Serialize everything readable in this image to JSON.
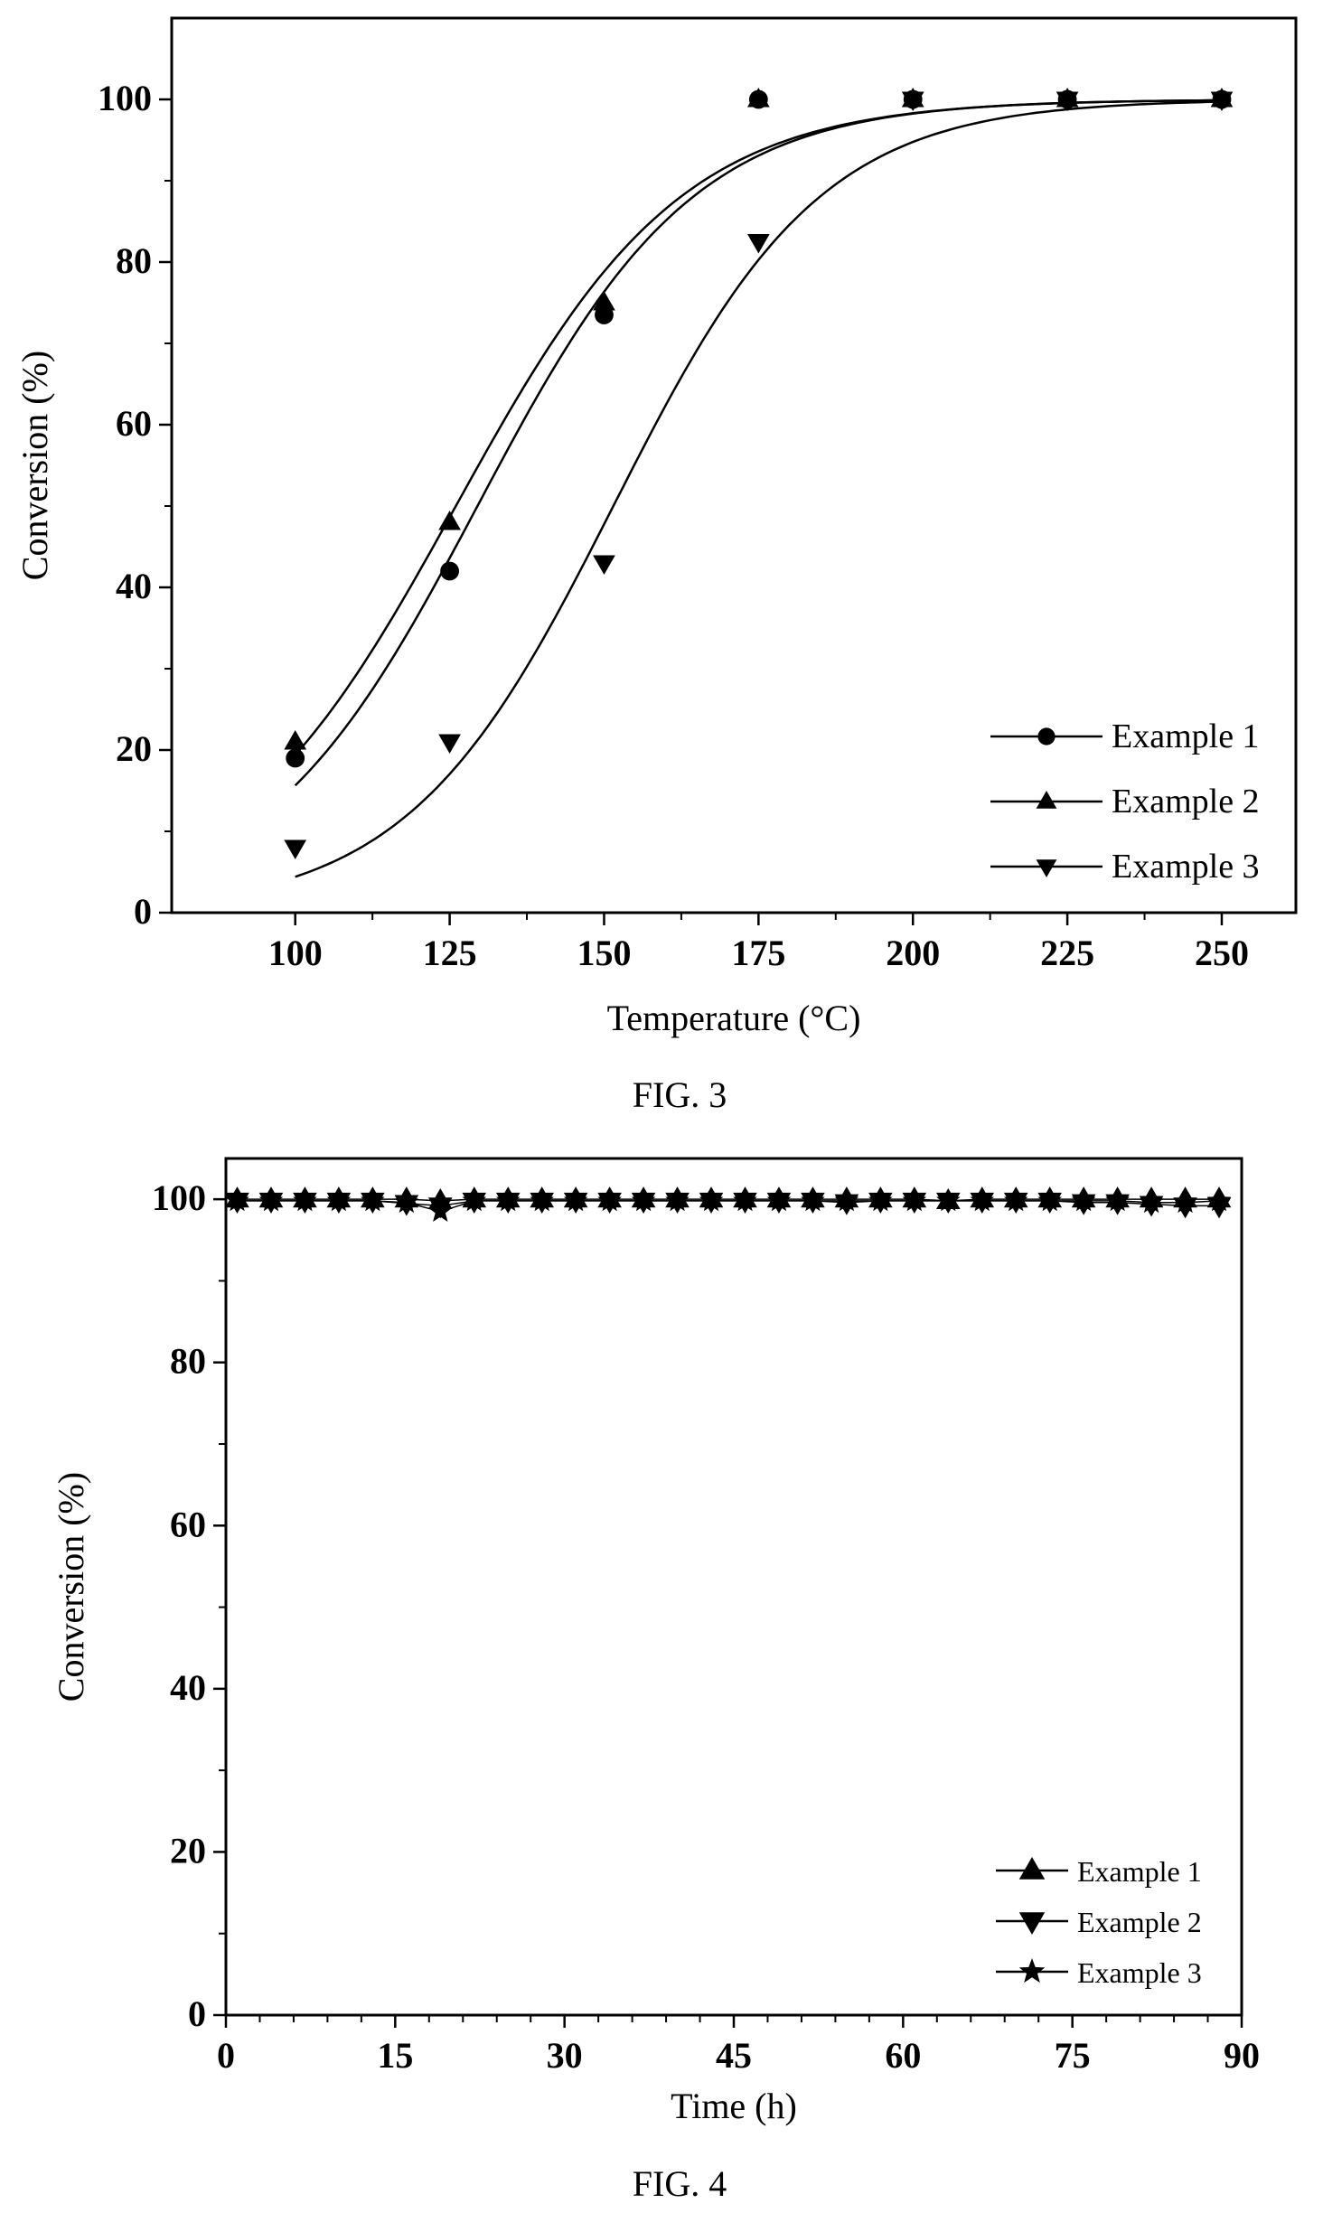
{
  "chart_data": [
    {
      "type": "scatter",
      "caption": "FIG. 3",
      "xlabel": "Temperature (°C)",
      "ylabel": "Conversion (%)",
      "xlim": [
        80,
        262
      ],
      "ylim": [
        0,
        110
      ],
      "xticks": [
        100,
        125,
        150,
        175,
        200,
        225,
        250
      ],
      "yticks": [
        0,
        20,
        40,
        60,
        80,
        100
      ],
      "grid": false,
      "legend_position": "bottom-right",
      "fitted_curves": true,
      "series": [
        {
          "name": "Example 1",
          "marker": "circle",
          "x": [
            100,
            125,
            150,
            175,
            200,
            225,
            250
          ],
          "values": [
            19,
            42,
            73.5,
            100,
            100,
            100,
            100
          ]
        },
        {
          "name": "Example 2",
          "marker": "triangle-up",
          "x": [
            100,
            125,
            150,
            175,
            200,
            225,
            250
          ],
          "values": [
            21,
            48,
            75,
            100,
            100,
            100,
            100
          ]
        },
        {
          "name": "Example 3",
          "marker": "triangle-down",
          "x": [
            100,
            125,
            150,
            175,
            200,
            225,
            250
          ],
          "values": [
            8,
            21,
            43,
            82.5,
            100,
            100,
            100
          ]
        }
      ]
    },
    {
      "type": "line",
      "caption": "FIG. 4",
      "xlabel": "Time (h)",
      "ylabel": "Conversion (%)",
      "xlim": [
        0,
        90
      ],
      "ylim": [
        0,
        105
      ],
      "xticks": [
        0,
        15,
        30,
        45,
        60,
        75,
        90
      ],
      "yticks": [
        0,
        20,
        40,
        60,
        80,
        100
      ],
      "grid": false,
      "legend_position": "bottom-right",
      "series": [
        {
          "name": "Example 1",
          "marker": "triangle-up",
          "x": [
            1,
            4,
            7,
            10,
            13,
            16,
            19,
            22,
            25,
            28,
            31,
            34,
            37,
            40,
            43,
            46,
            49,
            52,
            55,
            58,
            61,
            64,
            67,
            70,
            73,
            76,
            79,
            82,
            85,
            88
          ],
          "values": [
            100,
            100,
            100,
            100,
            100,
            100,
            99.8,
            100,
            100,
            100,
            100,
            100,
            100,
            100,
            100,
            100,
            100,
            100,
            100,
            100,
            100,
            99.8,
            100,
            100,
            100,
            100,
            100,
            100,
            100,
            100
          ]
        },
        {
          "name": "Example 2",
          "marker": "triangle-down",
          "x": [
            1,
            4,
            7,
            10,
            13,
            16,
            19,
            22,
            25,
            28,
            31,
            34,
            37,
            40,
            43,
            46,
            49,
            52,
            55,
            58,
            61,
            64,
            67,
            70,
            73,
            76,
            79,
            82,
            85,
            88
          ],
          "values": [
            99.8,
            99.8,
            99.8,
            99.8,
            99.8,
            99.5,
            99.2,
            99.8,
            99.8,
            99.8,
            99.8,
            99.8,
            99.8,
            99.8,
            99.8,
            99.8,
            99.8,
            99.8,
            99.6,
            99.8,
            99.8,
            99.8,
            99.8,
            99.8,
            99.8,
            99.6,
            99.6,
            99.4,
            99.2,
            99.2
          ]
        },
        {
          "name": "Example 3",
          "marker": "star",
          "x": [
            1,
            4,
            7,
            10,
            13,
            16,
            19,
            22,
            25,
            28,
            31,
            34,
            37,
            40,
            43,
            46,
            49,
            52,
            55,
            58,
            61,
            64,
            67,
            70,
            73,
            76,
            79,
            82,
            85,
            88
          ],
          "values": [
            99.8,
            99.8,
            99.8,
            99.8,
            99.8,
            99.6,
            98.5,
            99.8,
            99.8,
            99.8,
            99.8,
            99.8,
            99.8,
            99.8,
            99.8,
            99.8,
            99.8,
            99.8,
            99.8,
            99.8,
            99.8,
            99.8,
            99.8,
            99.8,
            99.8,
            99.8,
            99.8,
            99.6,
            99.6,
            99.8
          ]
        }
      ]
    }
  ]
}
